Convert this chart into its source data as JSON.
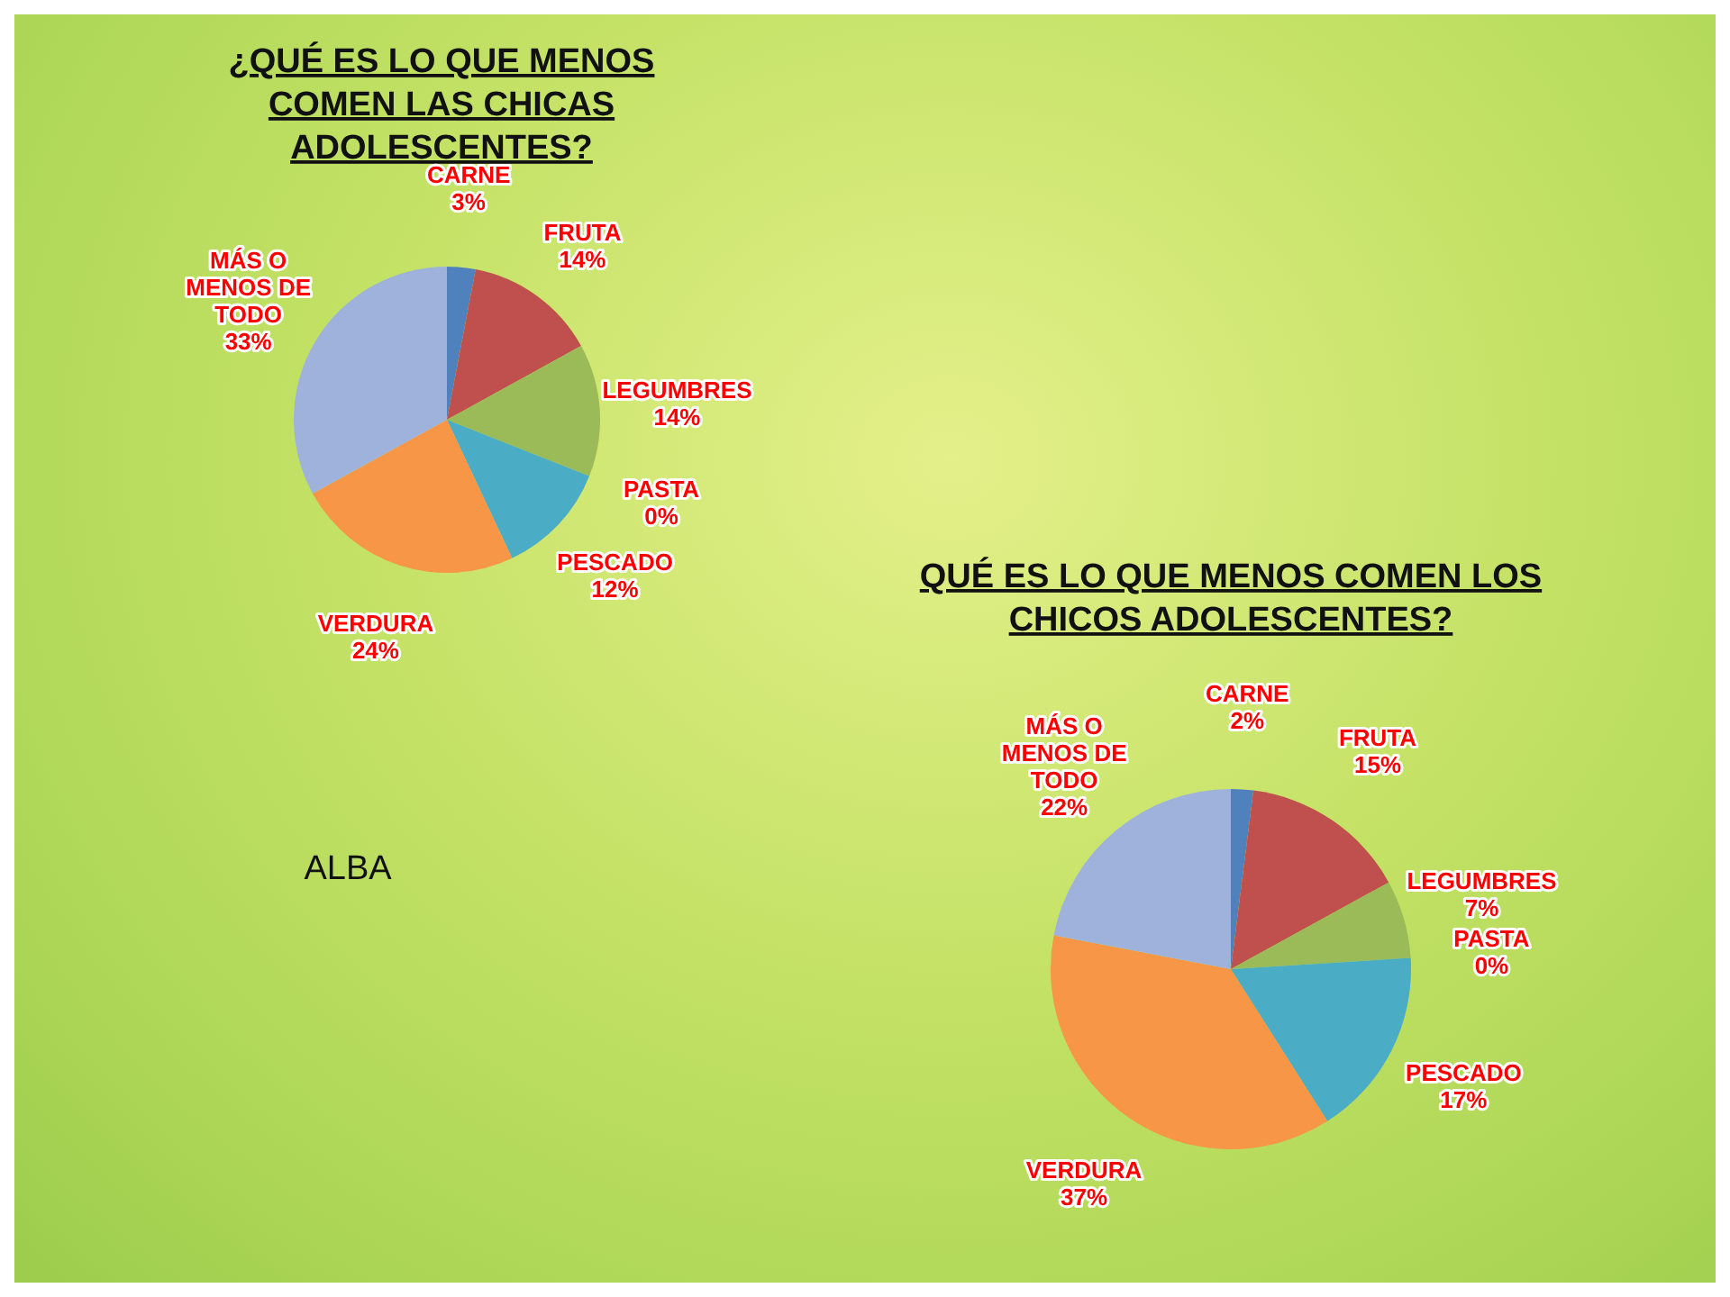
{
  "chart_data": [
    {
      "type": "pie",
      "title": "¿QUÉ ES LO QUE MENOS COMEN LAS CHICAS ADOLESCENTES?",
      "categories": [
        "CARNE",
        "FRUTA",
        "LEGUMBRES",
        "PASTA",
        "PESCADO",
        "VERDURA",
        "MÁS O MENOS DE TODO"
      ],
      "values": [
        3,
        14,
        14,
        0,
        12,
        24,
        33
      ],
      "value_labels": [
        "3%",
        "14%",
        "14%",
        "0%",
        "12%",
        "24%",
        "33%"
      ],
      "colors": [
        "#4f81bd",
        "#c0504d",
        "#9bbb59",
        "#8064a2",
        "#4bacc6",
        "#f79646",
        "#9fb2dc"
      ],
      "annotations": [
        "ALBA"
      ]
    },
    {
      "type": "pie",
      "title": "QUÉ ES LO QUE MENOS COMEN LOS CHICOS ADOLESCENTES?",
      "categories": [
        "CARNE",
        "FRUTA",
        "LEGUMBRES",
        "PASTA",
        "PESCADO",
        "VERDURA",
        "MÁS O MENOS DE TODO"
      ],
      "values": [
        2,
        15,
        7,
        0,
        17,
        37,
        22
      ],
      "value_labels": [
        "2%",
        "15%",
        "7%",
        "0%",
        "17%",
        "37%",
        "22%"
      ],
      "colors": [
        "#4f81bd",
        "#c0504d",
        "#9bbb59",
        "#8064a2",
        "#4bacc6",
        "#f79646",
        "#9fb2dc"
      ]
    }
  ]
}
